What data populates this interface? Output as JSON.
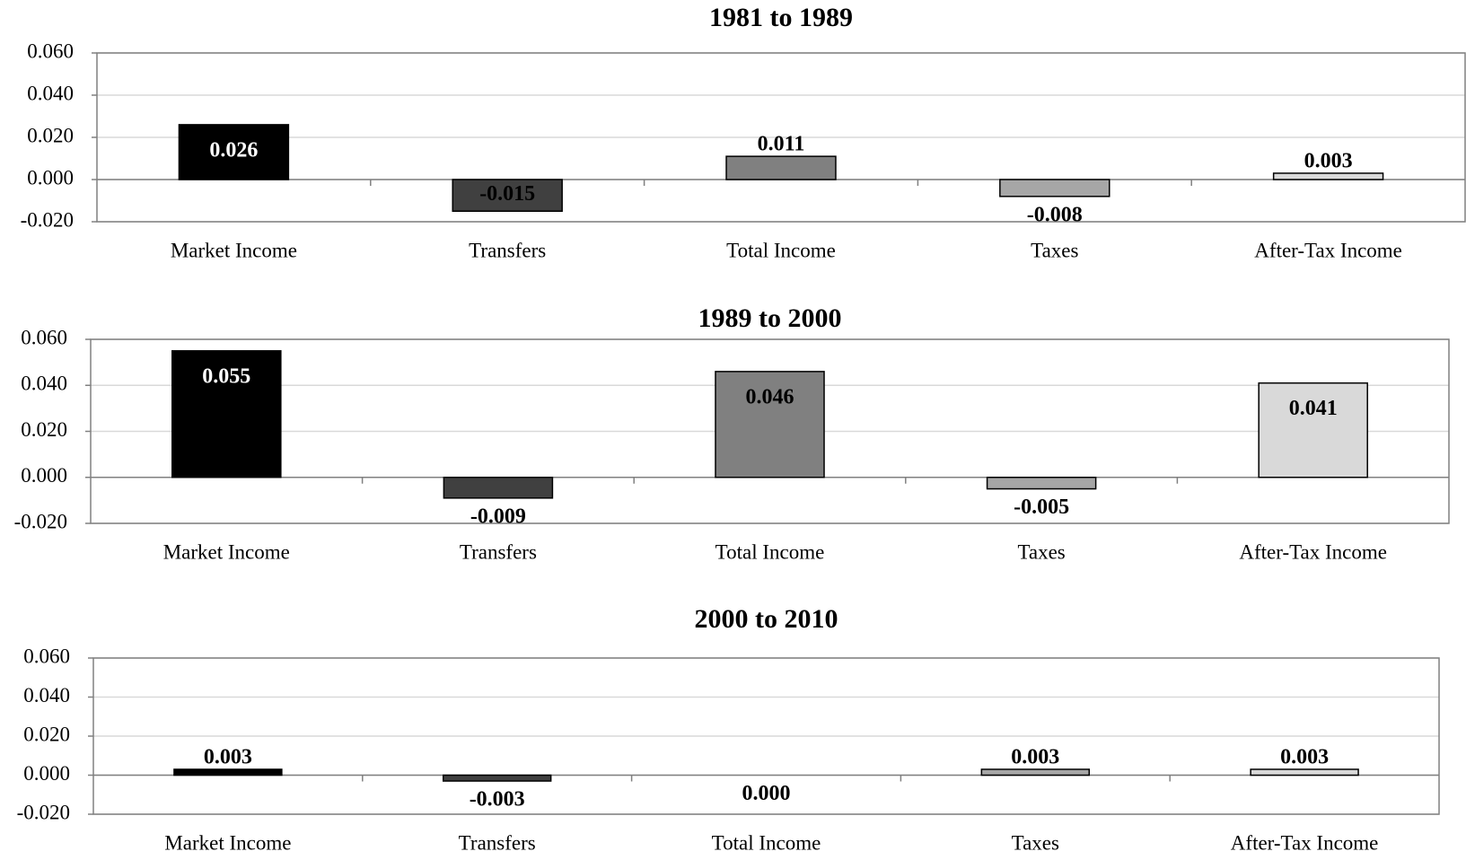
{
  "chart_data": [
    {
      "type": "bar",
      "title": "1981 to 1989",
      "categories": [
        "Market Income",
        "Transfers",
        "Total Income",
        "Taxes",
        "After-Tax Income"
      ],
      "values": [
        0.026,
        -0.015,
        0.011,
        -0.008,
        0.003
      ],
      "value_labels": [
        "0.026",
        "-0.015",
        "0.011",
        "-0.008",
        "0.003"
      ],
      "colors": [
        "#000000",
        "#404040",
        "#808080",
        "#a6a6a6",
        "#d9d9d9"
      ],
      "ylim": [
        -0.02,
        0.06
      ],
      "yticks": [
        {
          "value": -0.02,
          "label": "-0.020"
        },
        {
          "value": 0,
          "label": "0.000"
        },
        {
          "value": 0.02,
          "label": "0.020"
        },
        {
          "value": 0.04,
          "label": "0.040"
        },
        {
          "value": 0.06,
          "label": "0.060"
        }
      ],
      "grid": true
    },
    {
      "type": "bar",
      "title": "1989 to 2000",
      "categories": [
        "Market Income",
        "Transfers",
        "Total Income",
        "Taxes",
        "After-Tax Income"
      ],
      "values": [
        0.055,
        -0.009,
        0.046,
        -0.005,
        0.041
      ],
      "value_labels": [
        "0.055",
        "-0.009",
        "0.046",
        "-0.005",
        "0.041"
      ],
      "colors": [
        "#000000",
        "#404040",
        "#808080",
        "#a6a6a6",
        "#d9d9d9"
      ],
      "ylim": [
        -0.02,
        0.06
      ],
      "yticks": [
        {
          "value": -0.02,
          "label": "-0.020"
        },
        {
          "value": 0,
          "label": "0.000"
        },
        {
          "value": 0.02,
          "label": "0.020"
        },
        {
          "value": 0.04,
          "label": "0.040"
        },
        {
          "value": 0.06,
          "label": "0.060"
        }
      ],
      "grid": true
    },
    {
      "type": "bar",
      "title": "2000 to 2010",
      "categories": [
        "Market Income",
        "Transfers",
        "Total Income",
        "Taxes",
        "After-Tax Income"
      ],
      "values": [
        0.003,
        -0.003,
        0,
        0.003,
        0.003
      ],
      "value_labels": [
        "0.003",
        "-0.003",
        "0.000",
        "0.003",
        "0.003"
      ],
      "colors": [
        "#000000",
        "#404040",
        "#808080",
        "#a6a6a6",
        "#d9d9d9"
      ],
      "ylim": [
        -0.02,
        0.06
      ],
      "yticks": [
        {
          "value": -0.02,
          "label": "-0.020"
        },
        {
          "value": 0,
          "label": "0.000"
        },
        {
          "value": 0.02,
          "label": "0.020"
        },
        {
          "value": 0.04,
          "label": "0.040"
        },
        {
          "value": 0.06,
          "label": "0.060"
        }
      ],
      "grid": true
    }
  ]
}
